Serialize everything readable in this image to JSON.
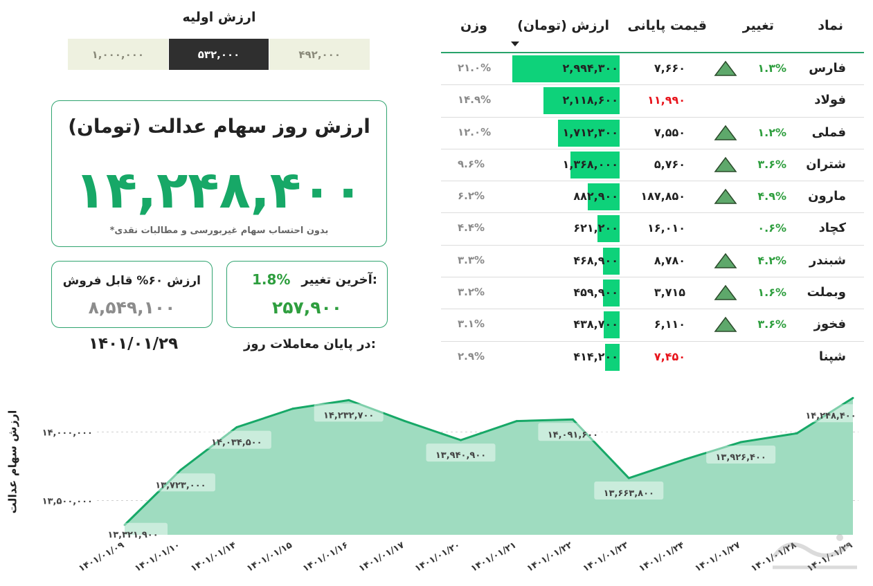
{
  "initial_value": {
    "title": "ارزش اولیه",
    "options": [
      "۱,۰۰۰,۰۰۰",
      "۵۳۲,۰۰۰",
      "۴۹۲,۰۰۰"
    ],
    "selected_index": 1
  },
  "main_card": {
    "title": "ارزش روز سهام عدالت (تومان)",
    "value": "۱۴,۲۴۸,۴۰۰",
    "note": "*بدون احتساب سهام غیربورسی و مطالبات نقدی"
  },
  "sellable_card": {
    "title": "ارزش ۶۰% قابل فروش",
    "value": "۸,۵۴۹,۱۰۰"
  },
  "change_card": {
    "label": "آخرین تغییر:",
    "percent": "1.8%",
    "value": "۲۵۷,۹۰۰"
  },
  "end_of_day": {
    "label": "در پایان معاملات روز:",
    "date": "۱۴۰۱/۰۱/۲۹"
  },
  "table": {
    "headers": {
      "symbol": "نماد",
      "change": "تغییر",
      "price": "قیمت پایانی",
      "value": "ارزش (تومان)",
      "weight": "وزن"
    },
    "rows": [
      {
        "symbol": "فارس",
        "change": "۱.۳%",
        "up": true,
        "price": "۷,۶۶۰",
        "price_red": false,
        "value": "۲,۹۹۴,۳۰۰",
        "value_num": 2994300,
        "weight": "۲۱.۰%"
      },
      {
        "symbol": "فولاد",
        "change": "",
        "up": false,
        "price": "۱۱,۹۹۰",
        "price_red": true,
        "value": "۲,۱۱۸,۶۰۰",
        "value_num": 2118600,
        "weight": "۱۴.۹%"
      },
      {
        "symbol": "فملی",
        "change": "۱.۲%",
        "up": true,
        "price": "۷,۵۵۰",
        "price_red": false,
        "value": "۱,۷۱۲,۳۰۰",
        "value_num": 1712300,
        "weight": "۱۲.۰%"
      },
      {
        "symbol": "شتران",
        "change": "۳.۶%",
        "up": true,
        "price": "۵,۷۶۰",
        "price_red": false,
        "value": "۱,۳۶۸,۰۰۰",
        "value_num": 1368000,
        "weight": "۹.۶%"
      },
      {
        "symbol": "مارون",
        "change": "۴.۹%",
        "up": true,
        "price": "۱۸۷,۸۵۰",
        "price_red": false,
        "value": "۸۸۲,۹۰۰",
        "value_num": 882900,
        "weight": "۶.۲%"
      },
      {
        "symbol": "کچاد",
        "change": "۰.۶%",
        "up": false,
        "price": "۱۶,۰۱۰",
        "price_red": false,
        "value": "۶۲۱,۲۰۰",
        "value_num": 621200,
        "weight": "۴.۴%"
      },
      {
        "symbol": "شبندر",
        "change": "۴.۲%",
        "up": true,
        "price": "۸,۷۸۰",
        "price_red": false,
        "value": "۴۶۸,۹۰۰",
        "value_num": 468900,
        "weight": "۳.۳%"
      },
      {
        "symbol": "وبملت",
        "change": "۱.۶%",
        "up": true,
        "price": "۳,۷۱۵",
        "price_red": false,
        "value": "۴۵۹,۹۰۰",
        "value_num": 459900,
        "weight": "۳.۲%"
      },
      {
        "symbol": "فخوز",
        "change": "۳.۶%",
        "up": true,
        "price": "۶,۱۱۰",
        "price_red": false,
        "value": "۴۳۸,۷۰۰",
        "value_num": 438700,
        "weight": "۳.۱%"
      },
      {
        "symbol": "شپنا",
        "change": "",
        "up": false,
        "price": "۷,۴۵۰",
        "price_red": true,
        "value": "۴۱۴,۲۰۰",
        "value_num": 414200,
        "weight": "۲.۹%"
      }
    ]
  },
  "colors": {
    "accent": "#17a867",
    "bar": "#0ed27a",
    "area_fill": "#9fdcc0",
    "line": "#17a867",
    "up": "#2e9e3e",
    "down": "#e8141c",
    "triangle": "#5ea86b"
  },
  "chart_data": {
    "type": "area",
    "ylabel": "ارزش سهام عدالت",
    "x": [
      "۱۴۰۱/۰۱/۰۹",
      "۱۴۰۱/۰۱/۱۰",
      "۱۴۰۱/۰۱/۱۴",
      "۱۴۰۱/۰۱/۱۵",
      "۱۴۰۱/۰۱/۱۶",
      "۱۴۰۱/۰۱/۱۷",
      "۱۴۰۱/۰۱/۲۰",
      "۱۴۰۱/۰۱/۲۱",
      "۱۴۰۱/۰۱/۲۲",
      "۱۴۰۱/۰۱/۲۳",
      "۱۴۰۱/۰۱/۲۴",
      "۱۴۰۱/۰۱/۲۷",
      "۱۴۰۱/۰۱/۲۸",
      "۱۴۰۱/۰۱/۲۹"
    ],
    "values": [
      13321900,
      13723000,
      14034500,
      14170000,
      14232700,
      14080000,
      13940900,
      14080000,
      14091600,
      13663800,
      13800000,
      13926400,
      13990400,
      14248400
    ],
    "data_labels": {
      "0": "۱۳,۳۲۱,۹۰۰",
      "1": "۱۳,۷۲۳,۰۰۰",
      "2": "۱۴,۰۳۴,۵۰۰",
      "4": "۱۴,۲۳۲,۷۰۰",
      "6": "۱۳,۹۴۰,۹۰۰",
      "8": "۱۴,۰۹۱,۶۰۰",
      "9": "۱۳,۶۶۳,۸۰۰",
      "11": "۱۳,۹۲۶,۴۰۰",
      "13": "۱۴,۲۴۸,۴۰۰"
    },
    "yticks": [
      13500000,
      14000000
    ],
    "ytick_labels": [
      "۱۳,۵۰۰,۰۰۰",
      "۱۴,۰۰۰,۰۰۰"
    ],
    "ylim": [
      13250000,
      14300000
    ],
    "grid": true
  }
}
